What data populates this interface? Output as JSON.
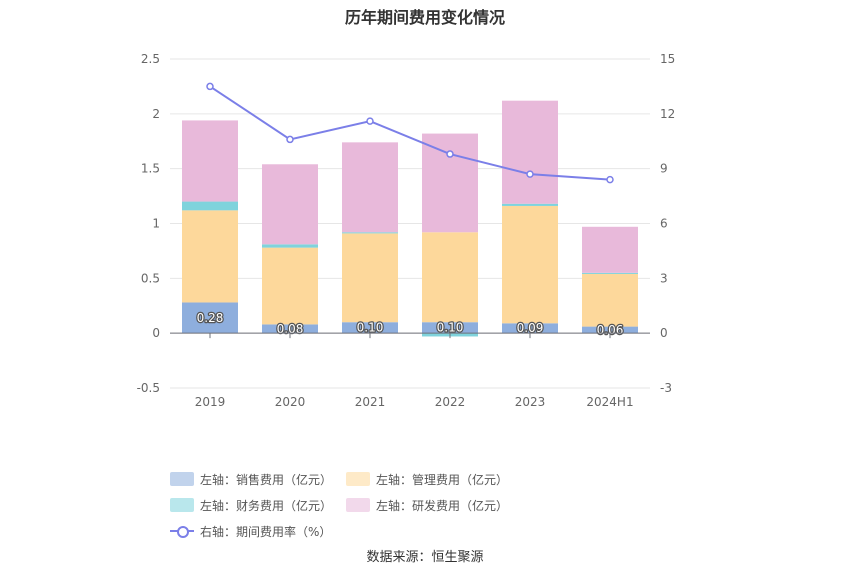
{
  "chart_data": {
    "type": "bar",
    "title": "历年期间费用变化情况",
    "categories": [
      "2019",
      "2020",
      "2021",
      "2022",
      "2023",
      "2024H1"
    ],
    "stacked": true,
    "left_axis": {
      "ylim": [
        -0.5,
        2.5
      ],
      "ticks": [
        "-0.5",
        "0",
        "0.5",
        "1",
        "1.5",
        "2",
        "2.5"
      ]
    },
    "right_axis": {
      "ylim": [
        -3,
        15
      ],
      "ticks": [
        "-3",
        "0",
        "3",
        "6",
        "9",
        "12",
        "15"
      ]
    },
    "series": [
      {
        "name": "左轴：销售费用（亿元）",
        "color": "#8eaedd",
        "axis": "left",
        "values": [
          0.28,
          0.08,
          0.1,
          0.1,
          0.09,
          0.06
        ],
        "labels": [
          "0.28",
          "0.08",
          "0.10",
          "0.10",
          "0.09",
          "0.06"
        ]
      },
      {
        "name": "左轴：管理费用（亿元）",
        "color": "#fdd89b",
        "axis": "left",
        "values": [
          0.84,
          0.7,
          0.81,
          0.82,
          1.07,
          0.48
        ]
      },
      {
        "name": "左轴：财务费用（亿元）",
        "color": "#7fd3dc",
        "axis": "left",
        "values": [
          0.08,
          0.03,
          0.01,
          -0.03,
          0.02,
          0.01
        ]
      },
      {
        "name": "左轴：研发费用（亿元）",
        "color": "#e8b9da",
        "axis": "left",
        "values": [
          0.74,
          0.73,
          0.82,
          0.9,
          0.94,
          0.42
        ]
      },
      {
        "name": "右轴：期间费用率（%）",
        "color": "#7b7fe8",
        "axis": "right",
        "type": "line",
        "values": [
          13.5,
          10.6,
          11.6,
          9.8,
          8.7,
          8.4
        ]
      }
    ],
    "legend_position": "bottom",
    "grid": true
  },
  "footer": {
    "source": "数据来源：恒生聚源"
  }
}
